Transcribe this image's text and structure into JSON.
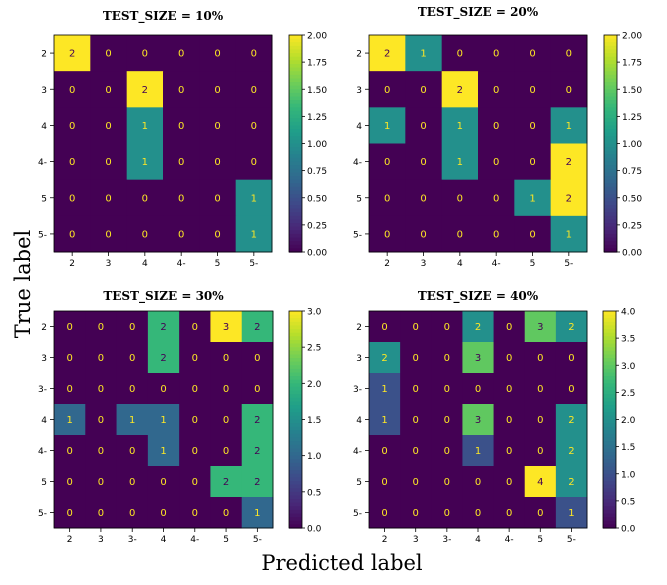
{
  "figure": {
    "xlabel": "Predicted label",
    "ylabel": "True label"
  },
  "colormap": [
    "#440154",
    "#482878",
    "#3e4989",
    "#31688e",
    "#26828e",
    "#1f9e89",
    "#35b779",
    "#6ece58",
    "#b5de2b",
    "#fde725"
  ],
  "chart_data": [
    {
      "type": "heatmap",
      "title": "TEST_SIZE = 10%",
      "x_labels": [
        "2",
        "3",
        "4",
        "4-",
        "5",
        "5-"
      ],
      "y_labels": [
        "2",
        "3",
        "4",
        "4-",
        "5",
        "5-"
      ],
      "values": [
        [
          2,
          0,
          0,
          0,
          0,
          0
        ],
        [
          0,
          0,
          2,
          0,
          0,
          0
        ],
        [
          0,
          0,
          1,
          0,
          0,
          0
        ],
        [
          0,
          0,
          1,
          0,
          0,
          0
        ],
        [
          0,
          0,
          0,
          0,
          0,
          1
        ],
        [
          0,
          0,
          0,
          0,
          0,
          1
        ]
      ],
      "colorbar": {
        "min": 0,
        "max": 2,
        "ticks": [
          "0.00",
          "0.25",
          "0.50",
          "0.75",
          "1.00",
          "1.25",
          "1.50",
          "1.75",
          "2.00"
        ]
      }
    },
    {
      "type": "heatmap",
      "title": "TEST_SIZE = 20%",
      "x_labels": [
        "2",
        "3",
        "4",
        "4-",
        "5",
        "5-"
      ],
      "y_labels": [
        "2",
        "3",
        "4",
        "4-",
        "5",
        "5-"
      ],
      "values": [
        [
          2,
          1,
          0,
          0,
          0,
          0
        ],
        [
          0,
          0,
          2,
          0,
          0,
          0
        ],
        [
          1,
          0,
          1,
          0,
          0,
          1
        ],
        [
          0,
          0,
          1,
          0,
          0,
          2
        ],
        [
          0,
          0,
          0,
          0,
          1,
          2
        ],
        [
          0,
          0,
          0,
          0,
          0,
          1
        ]
      ],
      "colorbar": {
        "min": 0,
        "max": 2,
        "ticks": [
          "0.00",
          "0.25",
          "0.50",
          "0.75",
          "1.00",
          "1.25",
          "1.50",
          "1.75",
          "2.00"
        ]
      }
    },
    {
      "type": "heatmap",
      "title": "TEST_SIZE = 30%",
      "x_labels": [
        "2",
        "3",
        "3-",
        "4",
        "4-",
        "5",
        "5-"
      ],
      "y_labels": [
        "2",
        "3",
        "3-",
        "4",
        "4-",
        "5",
        "5-"
      ],
      "values": [
        [
          0,
          0,
          0,
          2,
          0,
          3,
          2
        ],
        [
          0,
          0,
          0,
          2,
          0,
          0,
          0
        ],
        [
          0,
          0,
          0,
          0,
          0,
          0,
          0
        ],
        [
          1,
          0,
          1,
          1,
          0,
          0,
          2
        ],
        [
          0,
          0,
          0,
          1,
          0,
          0,
          2
        ],
        [
          0,
          0,
          0,
          0,
          0,
          2,
          2
        ],
        [
          0,
          0,
          0,
          0,
          0,
          0,
          1
        ]
      ],
      "colorbar": {
        "min": 0,
        "max": 3,
        "ticks": [
          "0.0",
          "0.5",
          "1.0",
          "1.5",
          "2.0",
          "2.5",
          "3.0"
        ]
      }
    },
    {
      "type": "heatmap",
      "title": "TEST_SIZE = 40%",
      "x_labels": [
        "2",
        "3",
        "3-",
        "4",
        "4-",
        "5",
        "5-"
      ],
      "y_labels": [
        "2",
        "3",
        "3-",
        "4",
        "4-",
        "5",
        "5-"
      ],
      "values": [
        [
          0,
          0,
          0,
          2,
          0,
          3,
          2
        ],
        [
          2,
          0,
          0,
          3,
          0,
          0,
          0
        ],
        [
          1,
          0,
          0,
          0,
          0,
          0,
          0
        ],
        [
          1,
          0,
          0,
          3,
          0,
          0,
          2
        ],
        [
          0,
          0,
          0,
          1,
          0,
          0,
          2
        ],
        [
          0,
          0,
          0,
          0,
          0,
          4,
          2
        ],
        [
          0,
          0,
          0,
          0,
          0,
          0,
          1
        ]
      ],
      "colorbar": {
        "min": 0,
        "max": 4,
        "ticks": [
          "0.0",
          "0.5",
          "1.0",
          "1.5",
          "2.0",
          "2.5",
          "3.0",
          "3.5",
          "4.0"
        ]
      }
    }
  ]
}
